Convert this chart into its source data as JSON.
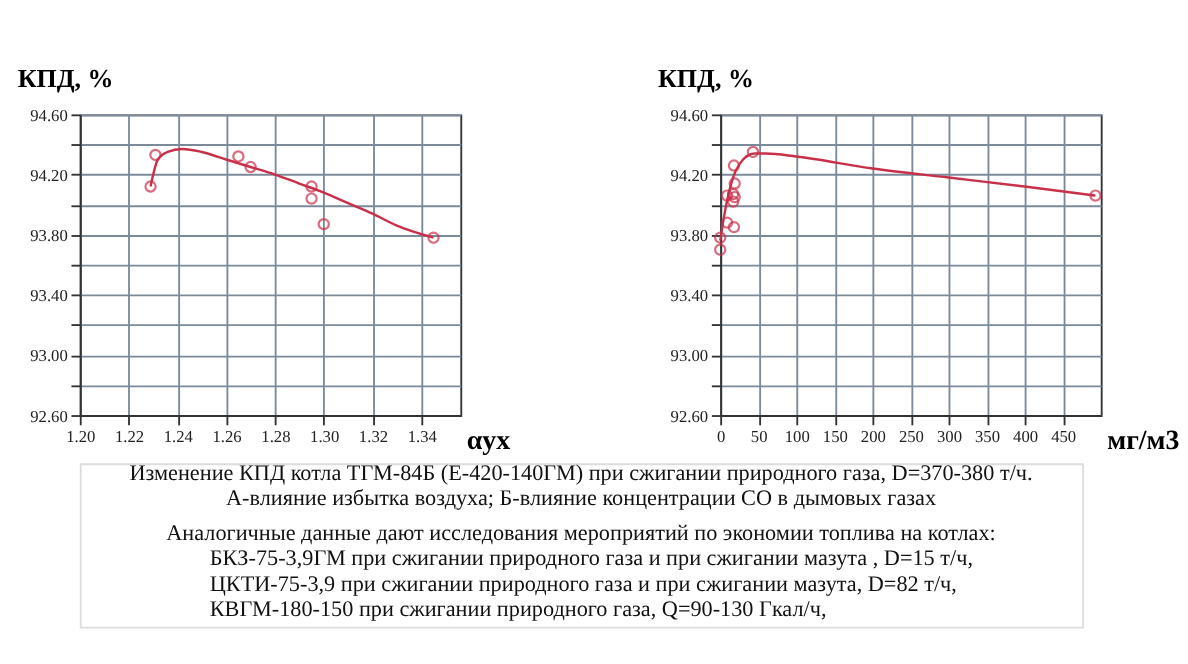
{
  "chart_data": [
    {
      "type": "scatter",
      "ylabel": "КПД, %",
      "xlabel": "αух",
      "xlim": [
        1.2,
        1.356
      ],
      "ylim": [
        92.6,
        94.6
      ],
      "xticks": [
        {
          "value": 1.2,
          "label": "1.20"
        },
        {
          "value": 1.22,
          "label": "1.22"
        },
        {
          "value": 1.24,
          "label": "1.24"
        },
        {
          "value": 1.26,
          "label": "1.26"
        },
        {
          "value": 1.28,
          "label": "1.28"
        },
        {
          "value": 1.3,
          "label": "1.30"
        },
        {
          "value": 1.32,
          "label": "1.32"
        },
        {
          "value": 1.34,
          "label": "1.34"
        }
      ],
      "yticks": [
        {
          "value": 92.6,
          "label": "92.60"
        },
        {
          "value": 92.8,
          "label": null
        },
        {
          "value": 93.0,
          "label": "93.00"
        },
        {
          "value": 93.2,
          "label": null
        },
        {
          "value": 93.4,
          "label": "93.40"
        },
        {
          "value": 93.6,
          "label": null
        },
        {
          "value": 93.8,
          "label": "93.80"
        },
        {
          "value": 94.0,
          "label": null
        },
        {
          "value": 94.2,
          "label": "94.20"
        },
        {
          "value": 94.4,
          "label": null
        },
        {
          "value": 94.6,
          "label": "94.60"
        }
      ],
      "grid": true,
      "series": [
        {
          "type": "scatter",
          "marker": "circle",
          "color": "#c8304a",
          "x": [
            1.229,
            1.231,
            1.265,
            1.27,
            1.295,
            1.295,
            1.3,
            1.345
          ],
          "values": [
            94.12,
            94.33,
            94.32,
            94.25,
            94.12,
            94.04,
            93.87,
            93.78
          ]
        },
        {
          "type": "line",
          "marker": "none",
          "color": "#c8304a",
          "x": [
            1.229,
            1.232,
            1.236,
            1.242,
            1.25,
            1.26,
            1.27,
            1.28,
            1.29,
            1.3,
            1.31,
            1.32,
            1.33,
            1.345
          ],
          "values": [
            94.12,
            94.3,
            94.35,
            94.37,
            94.35,
            94.3,
            94.25,
            94.2,
            94.14,
            94.08,
            94.01,
            93.94,
            93.86,
            93.78
          ]
        }
      ],
      "annotations": [
        "Изменение КПД котла ТГМ-84Б (Е-420-140ГМ) при сжигании природного газа, D=370-380 т/ч.",
        "А-влияние избытка воздуха;     Б-влияние концентрации СО в дымовых газах",
        "Аналогичные данные дают исследования мероприятий по экономии топлива на котлах:",
        "БКЗ-75-3,9ГМ при сжигании природного газа и при сжигании мазута , D=15 т/ч,",
        "ЦКТИ-75-3,9 при сжигании природного газа и при сжигании мазута, D=82 т/ч,",
        "КВГМ-180-150 при сжигании природного газа, Q=90-130 Гкал/ч,"
      ]
    },
    {
      "type": "scatter",
      "ylabel": "КПД, %",
      "xlabel": "мг/м3",
      "xlim": [
        0,
        500
      ],
      "ylim": [
        92.6,
        94.6
      ],
      "xticks": [
        0,
        50,
        100,
        150,
        200,
        250,
        300,
        350,
        400,
        450
      ],
      "yticks": [
        {
          "value": 92.6,
          "label": "92.60"
        },
        {
          "value": 92.8,
          "label": null
        },
        {
          "value": 93.0,
          "label": "93.00"
        },
        {
          "value": 93.2,
          "label": null
        },
        {
          "value": 93.4,
          "label": "93.40"
        },
        {
          "value": 93.6,
          "label": null
        },
        {
          "value": 93.8,
          "label": "93.80"
        },
        {
          "value": 94.0,
          "label": null
        },
        {
          "value": 94.2,
          "label": "94.20"
        },
        {
          "value": 94.4,
          "label": null
        },
        {
          "value": 94.6,
          "label": "94.60"
        }
      ],
      "grid": true,
      "series": [
        {
          "type": "scatter",
          "marker": "circle",
          "color": "#c8304a",
          "x": [
            0,
            0,
            9,
            9,
            17,
            17,
            18,
            19,
            19,
            18,
            43,
            493
          ],
          "values": [
            93.78,
            93.7,
            93.88,
            94.06,
            94.07,
            94.02,
            94.26,
            94.14,
            94.05,
            93.85,
            94.35,
            94.06
          ]
        },
        {
          "type": "line",
          "marker": "none",
          "color": "#c8304a",
          "x": [
            0,
            5,
            10,
            15,
            20,
            30,
            45,
            60,
            100,
            200,
            300,
            400,
            493
          ],
          "values": [
            93.76,
            93.92,
            94.05,
            94.15,
            94.22,
            94.3,
            94.34,
            94.34,
            94.32,
            94.24,
            94.18,
            94.12,
            94.06
          ]
        }
      ]
    }
  ]
}
